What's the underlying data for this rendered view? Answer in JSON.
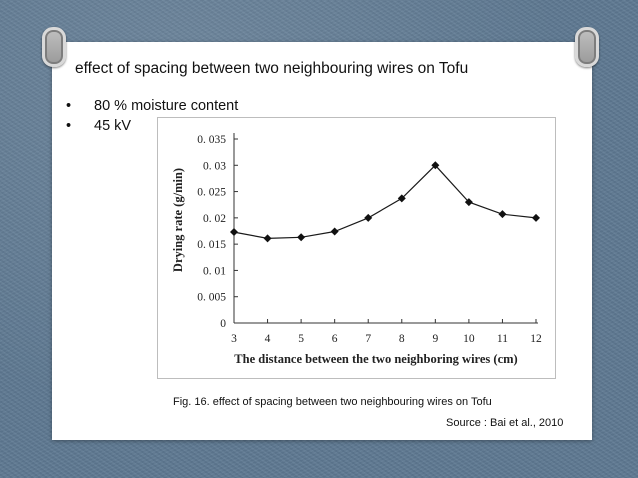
{
  "slide": {
    "title": "effect of spacing between two neighbouring wires on Tofu",
    "bullets": [
      {
        "marker": "•",
        "text": "80 % moisture content"
      },
      {
        "marker": "•",
        "text": "45 kV"
      }
    ],
    "caption": "Fig. 16. effect of spacing between two neighbouring wires     on Tofu",
    "source": "Source : Bai et al., 2010"
  },
  "chart_data": {
    "type": "line",
    "xlabel": "The distance between the two neighboring wires (cm)",
    "ylabel": "Drying rate (g/min)",
    "x": [
      3,
      4,
      5,
      6,
      7,
      8,
      9,
      10,
      11,
      12
    ],
    "series": [
      {
        "values": [
          0.0173,
          0.0161,
          0.0163,
          0.0174,
          0.02,
          0.0237,
          0.03,
          0.023,
          0.0207,
          0.02
        ]
      }
    ],
    "xlim": [
      3,
      12
    ],
    "ylim": [
      0,
      0.035
    ],
    "xticks": [
      "3",
      "4",
      "5",
      "6",
      "7",
      "8",
      "9",
      "10",
      "11",
      "12"
    ],
    "yticks": [
      {
        "value": 0,
        "label": "0"
      },
      {
        "value": 0.005,
        "label": "0. 005"
      },
      {
        "value": 0.01,
        "label": "0. 01"
      },
      {
        "value": 0.015,
        "label": "0. 015"
      },
      {
        "value": 0.02,
        "label": "0. 02"
      },
      {
        "value": 0.025,
        "label": "0. 025"
      },
      {
        "value": 0.03,
        "label": "0. 03"
      },
      {
        "value": 0.035,
        "label": "0. 035"
      }
    ],
    "grid": false,
    "marker": "diamond",
    "line_color": "#1a1a1a"
  }
}
